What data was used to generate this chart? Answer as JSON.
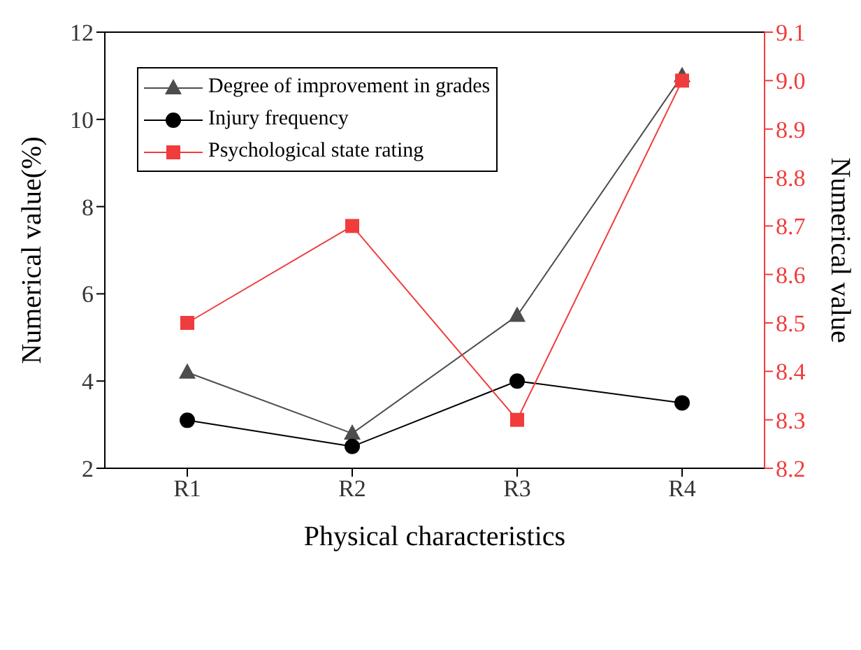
{
  "chart_data": {
    "type": "line",
    "xlabel": "Physical characteristics",
    "ylabel": "Numerical value(%)",
    "y2label": "Numerical value",
    "categories": [
      "R1",
      "R2",
      "R3",
      "R4"
    ],
    "series": [
      {
        "name": "Degree of improvement in grades",
        "color": "#4d4d4d",
        "marker": "triangle",
        "values": [
          4.2,
          2.8,
          5.5,
          11.0
        ]
      },
      {
        "name": "Injury frequency",
        "color": "#000000",
        "marker": "circle",
        "values": [
          3.1,
          2.5,
          4.0,
          3.5
        ]
      },
      {
        "name": "Psychological state rating",
        "color": "#f03c3c",
        "marker": "square",
        "axis": "y2",
        "values": [
          8.5,
          8.7,
          8.3,
          9.0
        ]
      }
    ],
    "ylim": [
      2,
      12
    ],
    "yticks": [
      2,
      4,
      6,
      8,
      10,
      12
    ],
    "y2lim": [
      8.2,
      9.1
    ],
    "y2ticks": [
      8.2,
      8.3,
      8.4,
      8.5,
      8.6,
      8.7,
      8.8,
      8.9,
      {
        "value": 9.0,
        "label": "9.0"
      },
      9.1
    ],
    "legend": "top left",
    "grid": false
  }
}
